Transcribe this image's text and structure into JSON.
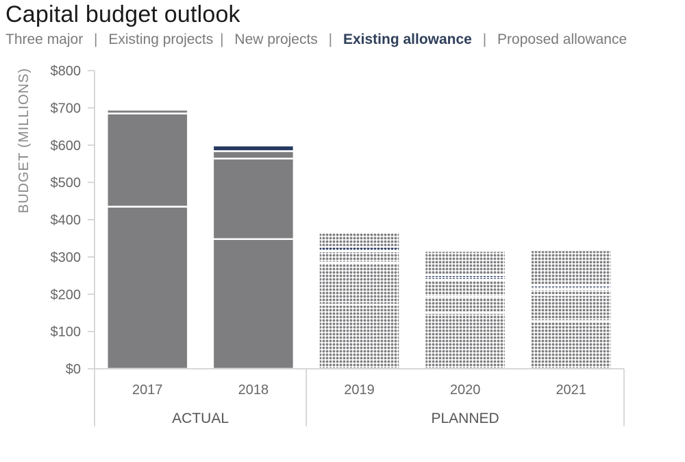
{
  "title": "Capital budget outlook",
  "legend_nav": [
    {
      "label": "Three major",
      "active": false
    },
    {
      "label": "Existing projects",
      "active": false
    },
    {
      "label": "New projects",
      "active": false
    },
    {
      "label": "Existing allowance",
      "active": true
    },
    {
      "label": "Proposed allowance",
      "active": false
    }
  ],
  "colors": {
    "bar_gray": "#7e7d80",
    "highlight_navy": "#25385e",
    "axis": "#cccccc",
    "pattern_bg": "#ffffff",
    "pattern_dot": "#808083"
  },
  "chart_data": {
    "type": "bar",
    "stacked": true,
    "title": "Capital budget outlook",
    "ylabel": "BUDGET (MILLIONS)",
    "ylim": [
      0,
      800
    ],
    "yticks": [
      0,
      100,
      200,
      300,
      400,
      500,
      600,
      700,
      800
    ],
    "ytick_labels": [
      "$0",
      "$100",
      "$200",
      "$300",
      "$400",
      "$500",
      "$600",
      "$700",
      "$800"
    ],
    "categories": [
      "2017",
      "2018",
      "2019",
      "2020",
      "2021"
    ],
    "groups": [
      {
        "label": "ACTUAL",
        "categories": [
          "2017",
          "2018"
        ]
      },
      {
        "label": "PLANNED",
        "categories": [
          "2019",
          "2020",
          "2021"
        ]
      }
    ],
    "patterned_categories": [
      "2019",
      "2020",
      "2021"
    ],
    "series": [
      {
        "name": "Three major",
        "values": [
          435,
          348,
          172,
          150,
          128
        ]
      },
      {
        "name": "Existing projects",
        "values": [
          250,
          216,
          113,
          44,
          70
        ]
      },
      {
        "name": "New projects",
        "values": [
          0,
          20,
          30,
          45,
          15
        ]
      },
      {
        "name": "Existing allowance",
        "values": [
          0,
          15,
          12,
          12,
          10
        ]
      },
      {
        "name": "Proposed allowance",
        "values": [
          10,
          0,
          38,
          65,
          95
        ]
      }
    ]
  }
}
